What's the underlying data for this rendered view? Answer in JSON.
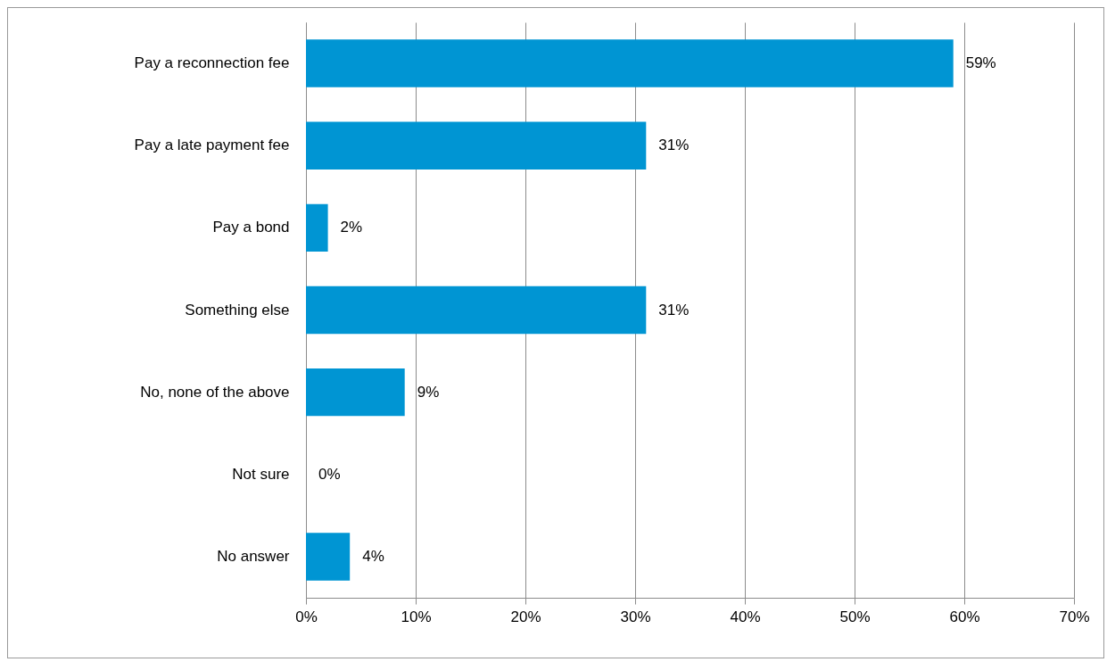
{
  "chart_data": {
    "type": "bar",
    "orientation": "horizontal",
    "categories": [
      "Pay a reconnection fee",
      "Pay a late payment fee",
      "Pay a bond",
      "Something else",
      "No, none of the above",
      "Not sure",
      "No answer"
    ],
    "values": [
      59,
      31,
      2,
      31,
      9,
      0,
      4
    ],
    "value_labels": [
      "59%",
      "31%",
      "2%",
      "31%",
      "9%",
      "0%",
      "4%"
    ],
    "color": "#0095d3",
    "xlim": [
      0,
      70
    ],
    "xticks": [
      {
        "value": 0,
        "label": "0%"
      },
      {
        "value": 10,
        "label": "10%"
      },
      {
        "value": 20,
        "label": "20%"
      },
      {
        "value": 30,
        "label": "30%"
      },
      {
        "value": 40,
        "label": "40%"
      },
      {
        "value": 50,
        "label": "50%"
      },
      {
        "value": 60,
        "label": "60%"
      },
      {
        "value": 70,
        "label": "70%"
      }
    ],
    "grid": "x"
  }
}
